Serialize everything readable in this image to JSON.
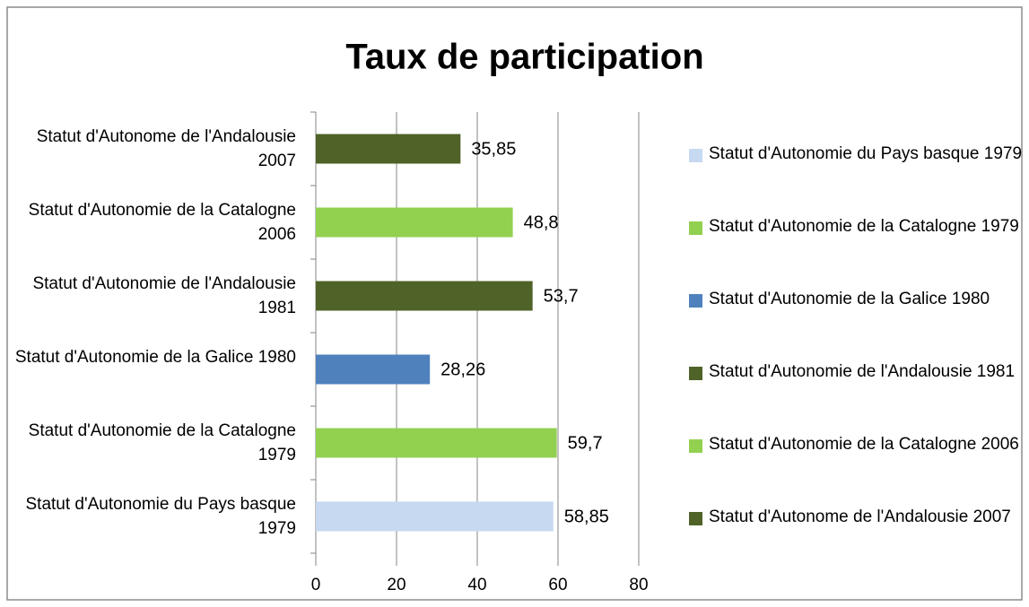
{
  "chart_data": {
    "type": "bar",
    "orientation": "horizontal",
    "title": "Taux de participation",
    "categories": [
      "Statut d'Autonomie du Pays basque 1979",
      "Statut d'Autonomie de la Catalogne 1979",
      "Statut d'Autonomie de la Galice 1980",
      "Statut d'Autonomie de l'Andalousie 1981",
      "Statut d'Autonomie de la Catalogne 2006",
      "Statut d'Autonome de l'Andalousie 2007"
    ],
    "values": [
      58.85,
      59.7,
      28.26,
      53.7,
      48.8,
      35.85
    ],
    "value_labels": [
      "58,85",
      "59,7",
      "28,26",
      "53,7",
      "48,8",
      "35,85"
    ],
    "colors": [
      "#c6d9f1",
      "#92d050",
      "#4f81bd",
      "#4f6228",
      "#92d050",
      "#4f6228"
    ],
    "xlim": [
      0,
      80
    ],
    "xticks": [
      0,
      20,
      40,
      60,
      80
    ],
    "grid": true,
    "legend": "right"
  }
}
